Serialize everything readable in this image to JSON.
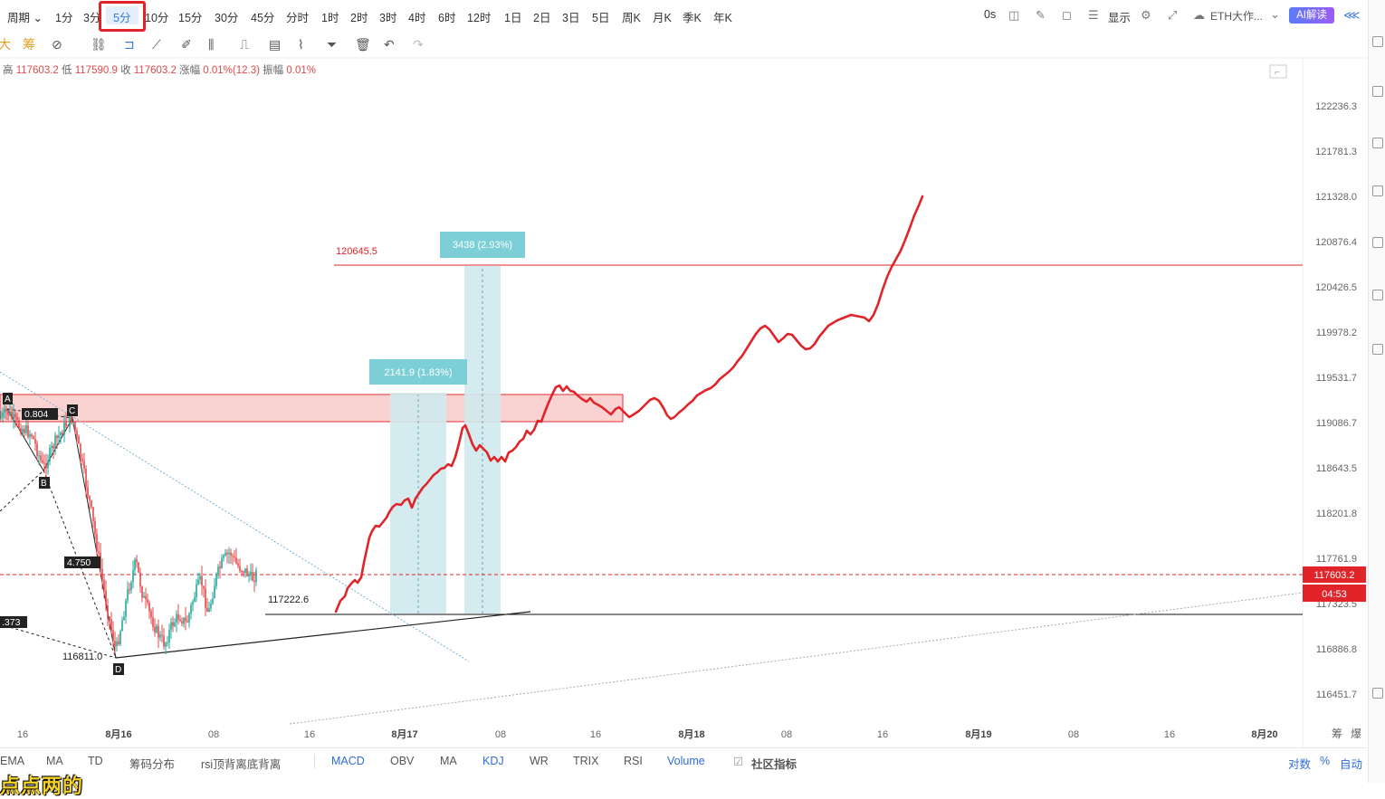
{
  "toolbar": {
    "period_menu": "周期",
    "periods": [
      "1分",
      "3分",
      "5分",
      "10分",
      "15分",
      "30分",
      "45分",
      "分时",
      "1时",
      "2时",
      "3时",
      "4时",
      "6时",
      "12时",
      "1日",
      "2日",
      "3日",
      "5日",
      "周K",
      "月K",
      "季K",
      "年K"
    ],
    "active_period": "5分",
    "countdown": "0s",
    "display_label": "显示",
    "symbol_label": "ETH大作...",
    "ai_label": "AI解读"
  },
  "draw_tools": {
    "side_labels": [
      "大",
      "筹"
    ]
  },
  "ohlc": {
    "high_label": "高",
    "high": "117603.2",
    "low_label": "低",
    "low": "117590.9",
    "close_label": "收",
    "close": "117603.2",
    "change_label": "涨幅",
    "change": "0.01%(12.3)",
    "amplitude_label": "振幅",
    "amplitude": "0.01%"
  },
  "price_axis": {
    "ticks": [
      "122236.3",
      "121781.3",
      "121328.0",
      "120876.4",
      "120426.5",
      "119978.2",
      "119531.7",
      "119086.7",
      "118643.5",
      "118201.8",
      "117761.9",
      "117323.5",
      "116886.8",
      "116451.7"
    ],
    "current_price": "117603.2",
    "countdown": "04:53"
  },
  "time_axis": {
    "ticks": [
      "16",
      "8月16",
      "08",
      "16",
      "8月17",
      "08",
      "16",
      "8月18",
      "08",
      "16",
      "8月19",
      "08",
      "16",
      "8月20"
    ],
    "right_labels": [
      "筹",
      "爆"
    ]
  },
  "annotations": {
    "target_line": "120645.5",
    "support_line": "117222.6",
    "measure_1": "2141.9 (1.83%)",
    "measure_2": "3438 (2.93%)",
    "low_price": "116811.0",
    "abcd": {
      "a": "A",
      "b": "B",
      "c": "C",
      "d": "D"
    },
    "ratio_1": "0.804",
    "ratio_2": "4.750",
    "ratio_3": ".373"
  },
  "bottom_tabs": {
    "left": [
      "EMA",
      "MA",
      "TD",
      "筹码分布",
      "rsi顶背离底背离"
    ],
    "right": [
      "MACD",
      "OBV",
      "MA",
      "KDJ",
      "WR",
      "TRIX",
      "RSI",
      "Volume"
    ],
    "community": "社区指标",
    "scale_log": "对数",
    "scale_pct": "%",
    "scale_auto": "自动"
  },
  "stream_overlay": "点点两的",
  "colors": {
    "up": "#26a69a",
    "down": "#e04a4a",
    "accent": "#3b7bd8",
    "highlight_box": "#e0242a",
    "projection": "#e0242a",
    "zone_fill": "#fbd0d0",
    "measure_fill": "#cfeaee",
    "measure_label": "#7ccfd6"
  }
}
